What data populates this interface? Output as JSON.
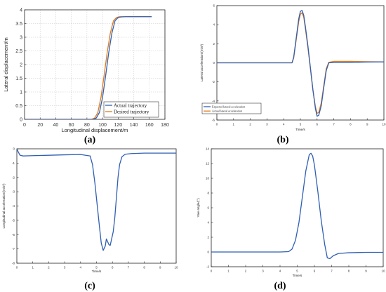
{
  "panels": [
    {
      "label": "(a)",
      "legend": [
        "Actual trajectory",
        "Desired trajectory"
      ]
    },
    {
      "label": "(b)",
      "legend": [
        "Expected lateral acceleration",
        "Actual lateral acceleration"
      ]
    },
    {
      "label": "(c)"
    },
    {
      "label": "(d)"
    }
  ],
  "chart_data": [
    {
      "type": "line",
      "xlabel": "Longitudinal displacement/m",
      "ylabel": "Lateral displacement/m",
      "xlim": [
        0,
        180
      ],
      "ylim": [
        0,
        4
      ],
      "xticks": [
        "0",
        "20",
        "40",
        "60",
        "80",
        "100",
        "120",
        "140",
        "160",
        "180"
      ],
      "yticks": [
        "0",
        "0.5",
        "1",
        "1.5",
        "2",
        "2.5",
        "3",
        "3.5",
        "4"
      ],
      "grid": true,
      "legend_position": "bottom-right",
      "series": [
        {
          "name": "Actual trajectory",
          "color": "#2f5fb3",
          "x": [
            0,
            20,
            40,
            60,
            80,
            88,
            92,
            96,
            100,
            104,
            108,
            112,
            116,
            120,
            124,
            130,
            140,
            150,
            163
          ],
          "y": [
            0,
            0,
            0,
            0,
            0,
            0.0,
            0.05,
            0.25,
            0.8,
            1.6,
            2.45,
            3.15,
            3.6,
            3.72,
            3.74,
            3.75,
            3.75,
            3.75,
            3.75
          ]
        },
        {
          "name": "Desired trajectory",
          "color": "#e07b1b",
          "x": [
            0,
            20,
            40,
            60,
            80,
            86,
            90,
            94,
            98,
            102,
            106,
            110,
            114,
            118,
            122,
            130,
            140,
            150,
            163
          ],
          "y": [
            0,
            0,
            0,
            0,
            0,
            0.0,
            0.05,
            0.25,
            0.8,
            1.6,
            2.45,
            3.15,
            3.6,
            3.72,
            3.75,
            3.75,
            3.75,
            3.75,
            3.75
          ]
        }
      ]
    },
    {
      "type": "line",
      "xlabel": "Time/s",
      "ylabel": "Lateral acceleration/(m/s²)",
      "xlim": [
        0,
        10
      ],
      "ylim": [
        -6,
        6
      ],
      "xticks": [
        "0",
        "1",
        "2",
        "3",
        "4",
        "5",
        "6",
        "7",
        "8",
        "9",
        "10"
      ],
      "yticks": [
        "-6",
        "-4",
        "-2",
        "0",
        "2",
        "4",
        "6"
      ],
      "grid": false,
      "legend_position": "bottom-left",
      "series": [
        {
          "name": "Expected lateral acceleration",
          "color": "#2f5fb3",
          "x": [
            0,
            4.5,
            4.6,
            4.75,
            4.9,
            5.0,
            5.1,
            5.2,
            5.3,
            5.45,
            5.6,
            5.75,
            5.9,
            6.0,
            6.1,
            6.25,
            6.4,
            6.55,
            6.7,
            7.0,
            8.0,
            9.0,
            10.0
          ],
          "y": [
            0,
            0,
            0.6,
            2.6,
            4.6,
            5.4,
            5.5,
            5.0,
            3.8,
            1.8,
            -0.5,
            -2.8,
            -4.8,
            -5.6,
            -5.5,
            -4.5,
            -2.6,
            -0.8,
            0.0,
            0.02,
            0.05,
            0.08,
            0.1
          ]
        },
        {
          "name": "Actual lateral acceleration",
          "color": "#e07b1b",
          "x": [
            0,
            4.5,
            4.6,
            4.75,
            4.9,
            5.0,
            5.1,
            5.2,
            5.3,
            5.45,
            5.6,
            5.75,
            5.9,
            6.0,
            6.1,
            6.25,
            6.4,
            6.55,
            6.7,
            7.0,
            8.0,
            9.0,
            10.0
          ],
          "y": [
            0,
            0,
            0.5,
            2.4,
            4.3,
            5.1,
            5.25,
            4.8,
            3.6,
            1.6,
            -0.6,
            -2.9,
            -4.6,
            -5.3,
            -5.2,
            -4.2,
            -2.4,
            -0.6,
            0.05,
            0.15,
            0.15,
            0.12,
            0.1
          ]
        }
      ]
    },
    {
      "type": "line",
      "xlabel": "Time/s",
      "ylabel": "Longitudinal acceleration/(m/s²)",
      "xlim": [
        0,
        10
      ],
      "ylim": [
        -8,
        0
      ],
      "xticks": [
        "0",
        "1",
        "2",
        "3",
        "4",
        "5",
        "6",
        "7",
        "8",
        "9",
        "10"
      ],
      "yticks": [
        "-8",
        "-7",
        "-6",
        "-5",
        "-4",
        "-3",
        "-2",
        "-1",
        "0"
      ],
      "grid": false,
      "series": [
        {
          "name": "",
          "color": "#2f5fb3",
          "x": [
            0,
            0.08,
            0.2,
            0.4,
            1,
            2,
            3,
            4,
            4.6,
            4.75,
            4.9,
            5.05,
            5.2,
            5.3,
            5.42,
            5.55,
            5.62,
            5.7,
            5.78,
            5.86,
            5.95,
            6.05,
            6.15,
            6.25,
            6.35,
            6.45,
            6.6,
            6.8,
            7.2,
            8,
            9,
            10
          ],
          "y": [
            0,
            -0.2,
            -0.45,
            -0.5,
            -0.48,
            -0.45,
            -0.42,
            -0.4,
            -0.5,
            -1.1,
            -2.4,
            -4.0,
            -5.6,
            -6.6,
            -7.1,
            -6.8,
            -6.3,
            -6.5,
            -6.7,
            -6.75,
            -6.3,
            -5.8,
            -4.8,
            -3.4,
            -2.0,
            -1.1,
            -0.55,
            -0.38,
            -0.33,
            -0.3,
            -0.3,
            -0.3
          ]
        }
      ]
    },
    {
      "type": "line",
      "xlabel": "Time/s",
      "ylabel": "Yaw angle/(°)",
      "xlim": [
        0,
        10
      ],
      "ylim": [
        -2,
        14
      ],
      "xticks": [
        "0",
        "1",
        "2",
        "3",
        "4",
        "5",
        "6",
        "7",
        "8",
        "9",
        "10"
      ],
      "yticks": [
        "-2",
        "0",
        "2",
        "4",
        "6",
        "8",
        "10",
        "12",
        "14"
      ],
      "grid": false,
      "series": [
        {
          "name": "",
          "color": "#2f5fb3",
          "x": [
            0,
            1,
            2,
            3,
            4,
            4.5,
            4.7,
            4.9,
            5.1,
            5.3,
            5.5,
            5.7,
            5.8,
            5.9,
            6.0,
            6.2,
            6.4,
            6.6,
            6.75,
            6.9,
            7.1,
            7.4,
            8,
            9,
            10
          ],
          "y": [
            0,
            0,
            0,
            0,
            0,
            0.05,
            0.4,
            1.6,
            4.0,
            7.5,
            11.0,
            13.2,
            13.4,
            13.0,
            11.8,
            8.2,
            4.2,
            1.0,
            -0.8,
            -0.9,
            -0.5,
            -0.2,
            -0.1,
            -0.05,
            -0.05
          ]
        }
      ]
    }
  ]
}
